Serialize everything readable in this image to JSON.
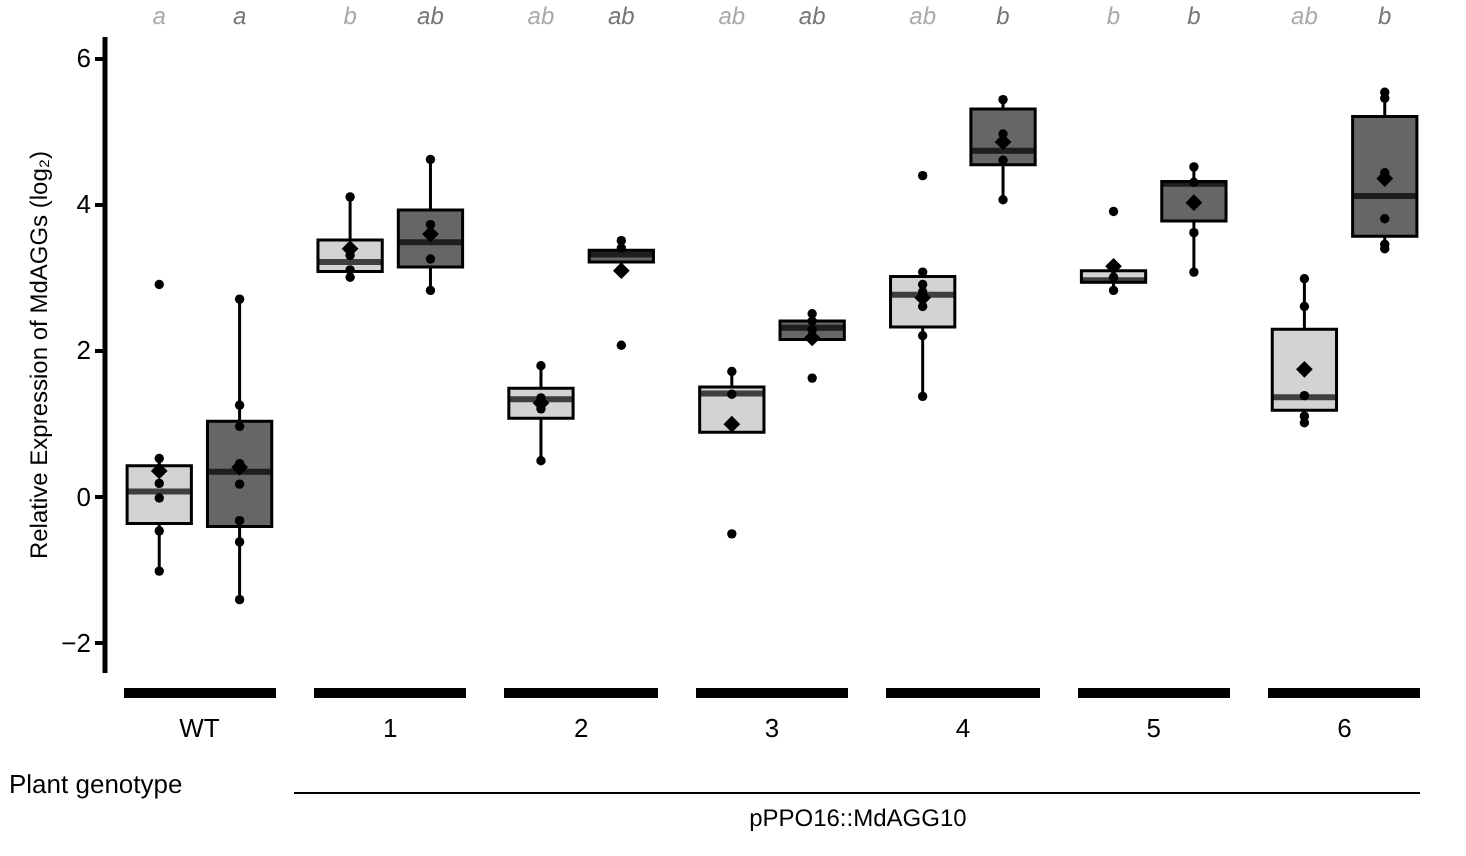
{
  "chart_data": {
    "type": "box",
    "ylabel": "Relative Expression of MdAGGs (log₂)",
    "xlabel": "Plant genotype",
    "categories": [
      "WT",
      "1",
      "2",
      "3",
      "4",
      "5",
      "6"
    ],
    "ylim": [
      -2.4,
      6.3
    ],
    "yticks": [
      -2,
      0,
      2,
      4,
      6
    ],
    "grid": false,
    "annotations": [
      "a",
      "a",
      "b",
      "ab",
      "ab",
      "ab",
      "ab",
      "ab",
      "ab",
      "b",
      "b",
      "b",
      "ab",
      "b",
      "pPPO16::MdAGG10"
    ],
    "series": [
      {
        "type": "box",
        "color": "#d3d3d3",
        "boxes": [
          {
            "low": -1.02,
            "q1": -0.37,
            "median": 0.07,
            "q3": 0.42,
            "high": 0.52,
            "mean": 0.35
          },
          {
            "low": 3.0,
            "q1": 3.08,
            "median": 3.21,
            "q3": 3.51,
            "high": 4.1,
            "mean": 3.39
          },
          {
            "low": 0.49,
            "q1": 1.07,
            "median": 1.33,
            "q3": 1.48,
            "high": 1.79,
            "mean": 1.28
          },
          {
            "low": 0.88,
            "q1": 0.88,
            "median": 1.41,
            "q3": 1.5,
            "high": 1.71,
            "mean": 0.99
          },
          {
            "low": 1.37,
            "q1": 2.32,
            "median": 2.76,
            "q3": 3.01,
            "high": 3.07,
            "mean": 2.72
          },
          {
            "low": 2.82,
            "q1": 2.93,
            "median": 2.96,
            "q3": 3.09,
            "high": 3.09,
            "mean": 3.15
          },
          {
            "low": 1.01,
            "q1": 1.18,
            "median": 1.36,
            "q3": 2.29,
            "high": 2.98,
            "mean": 1.74
          }
        ]
      },
      {
        "type": "box",
        "color": "#666666",
        "boxes": [
          {
            "low": -1.41,
            "q1": -0.41,
            "median": 0.34,
            "q3": 1.03,
            "high": 2.7,
            "mean": 0.4
          },
          {
            "low": 2.82,
            "q1": 3.14,
            "median": 3.48,
            "q3": 3.92,
            "high": 4.61,
            "mean": 3.59
          },
          {
            "low": 3.09,
            "q1": 3.21,
            "median": 3.31,
            "q3": 3.37,
            "high": 3.5,
            "mean": 3.09
          },
          {
            "low": 2.15,
            "q1": 2.15,
            "median": 2.31,
            "q3": 2.4,
            "high": 2.5,
            "mean": 2.17
          },
          {
            "low": 4.06,
            "q1": 4.54,
            "median": 4.73,
            "q3": 5.3,
            "high": 5.43,
            "mean": 4.85
          },
          {
            "low": 3.07,
            "q1": 3.77,
            "median": 4.28,
            "q3": 4.31,
            "high": 4.51,
            "mean": 4.02
          },
          {
            "low": 3.39,
            "q1": 3.56,
            "median": 4.11,
            "q3": 5.2,
            "high": 5.53,
            "mean": 4.35
          }
        ]
      },
      {
        "type": "scatter",
        "color": "#000000",
        "marker": "circle",
        "x": [
          "WT",
          "WT",
          "WT",
          "WT",
          "WT",
          "WT",
          "1",
          "1",
          "1",
          "1",
          "2",
          "2",
          "2",
          "2",
          "3",
          "3",
          "3",
          "4",
          "4",
          "4",
          "4",
          "4",
          "4",
          "4",
          "5",
          "5",
          "5",
          "6",
          "6",
          "6",
          "6",
          "6"
        ],
        "values": [
          2.9,
          0.52,
          0.18,
          -0.02,
          -0.47,
          -1.02,
          4.1,
          3.3,
          3.1,
          3.0,
          1.79,
          1.35,
          1.2,
          0.49,
          1.71,
          1.4,
          -0.51,
          4.39,
          3.07,
          2.9,
          2.8,
          2.6,
          2.2,
          1.37,
          3.9,
          3.0,
          2.82,
          2.98,
          2.6,
          1.38,
          1.1,
          1.01
        ]
      },
      {
        "type": "scatter",
        "color": "#000000",
        "marker": "circle",
        "x": [
          "WT",
          "WT",
          "WT",
          "WT",
          "WT",
          "WT",
          "WT",
          "WT",
          "1",
          "1",
          "1",
          "1",
          "2",
          "2",
          "2",
          "3",
          "3",
          "3",
          "3",
          "4",
          "4",
          "4",
          "4",
          "5",
          "5",
          "5",
          "5",
          "6",
          "6",
          "6",
          "6",
          "6",
          "6"
        ],
        "values": [
          2.7,
          1.25,
          0.96,
          0.45,
          0.17,
          -0.33,
          -0.62,
          -1.41,
          4.61,
          3.72,
          3.25,
          2.82,
          3.5,
          3.4,
          2.07,
          2.5,
          2.4,
          2.28,
          1.62,
          5.43,
          4.96,
          4.6,
          4.06,
          4.51,
          4.3,
          3.61,
          3.07,
          5.53,
          5.45,
          4.43,
          3.8,
          3.45,
          3.39
        ]
      }
    ]
  }
}
